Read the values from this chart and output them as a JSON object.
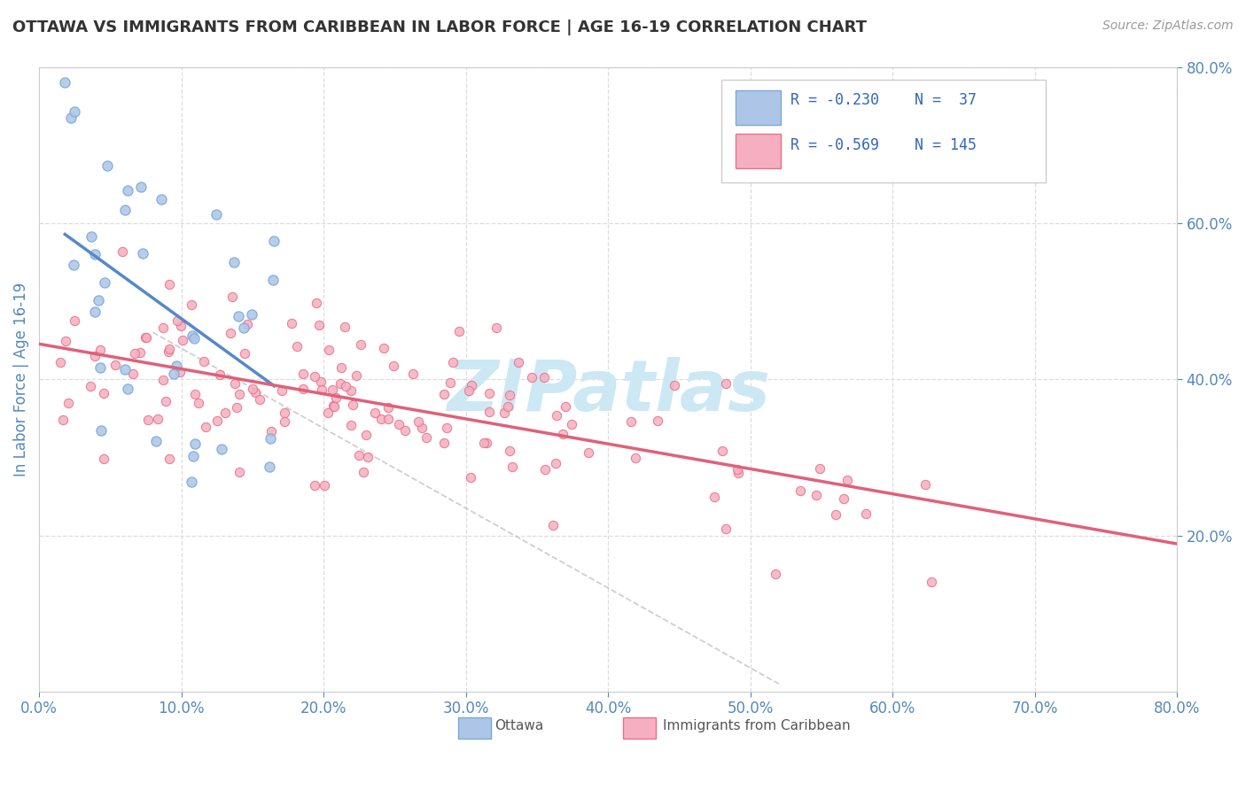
{
  "title": "OTTAWA VS IMMIGRANTS FROM CARIBBEAN IN LABOR FORCE | AGE 16-19 CORRELATION CHART",
  "source_text": "Source: ZipAtlas.com",
  "ylabel": "In Labor Force | Age 16-19",
  "xlim": [
    0.0,
    0.8
  ],
  "ylim": [
    0.0,
    0.8
  ],
  "legend_r1": "R = -0.230",
  "legend_n1": "N =  37",
  "legend_r2": "R = -0.569",
  "legend_n2": "N = 145",
  "legend_label1": "Ottawa",
  "legend_label2": "Immigrants from Caribbean",
  "color_ottawa_fill": "#adc6e8",
  "color_ottawa_edge": "#7aa8d8",
  "color_caribbean_fill": "#f5afc0",
  "color_caribbean_edge": "#e8708a",
  "color_line_ottawa": "#5588cc",
  "color_line_caribbean": "#e0607a",
  "color_dashed": "#bbbbbb",
  "color_axis_labels": "#5588bb",
  "color_legend_r": "#3366bb",
  "color_grid": "#dddddd",
  "watermark": "ZIPatlas",
  "watermark_color": "#cce8f4"
}
